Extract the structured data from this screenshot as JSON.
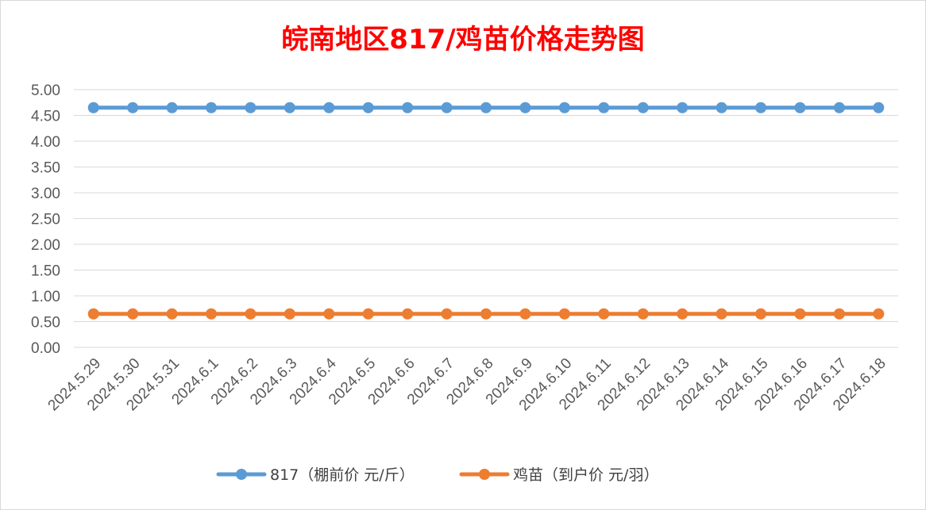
{
  "chart_data": {
    "type": "line",
    "title": "皖南地区817/鸡苗价格走势图",
    "xlabel": "",
    "ylabel": "",
    "categories": [
      "2024.5.29",
      "2024.5.30",
      "2024.5.31",
      "2024.6.1",
      "2024.6.2",
      "2024.6.3",
      "2024.6.4",
      "2024.6.5",
      "2024.6.6",
      "2024.6.7",
      "2024.6.8",
      "2024.6.9",
      "2024.6.10",
      "2024.6.11",
      "2024.6.12",
      "2024.6.13",
      "2024.6.14",
      "2024.6.15",
      "2024.6.16",
      "2024.6.17",
      "2024.6.18"
    ],
    "y_ticks": [
      "0.00",
      "0.50",
      "1.00",
      "1.50",
      "2.00",
      "2.50",
      "3.00",
      "3.50",
      "4.00",
      "4.50",
      "5.00"
    ],
    "ylim": [
      0,
      5
    ],
    "grid": true,
    "legend_position": "bottom",
    "series": [
      {
        "name": "817（棚前价 元/斤）",
        "color": "#5b9bd5",
        "values": [
          4.65,
          4.65,
          4.65,
          4.65,
          4.65,
          4.65,
          4.65,
          4.65,
          4.65,
          4.65,
          4.65,
          4.65,
          4.65,
          4.65,
          4.65,
          4.65,
          4.65,
          4.65,
          4.65,
          4.65,
          4.65
        ]
      },
      {
        "name": "鸡苗（到户价 元/羽）",
        "color": "#ed7d31",
        "values": [
          0.65,
          0.65,
          0.65,
          0.65,
          0.65,
          0.65,
          0.65,
          0.65,
          0.65,
          0.65,
          0.65,
          0.65,
          0.65,
          0.65,
          0.65,
          0.65,
          0.65,
          0.65,
          0.65,
          0.65,
          0.65
        ]
      }
    ]
  }
}
